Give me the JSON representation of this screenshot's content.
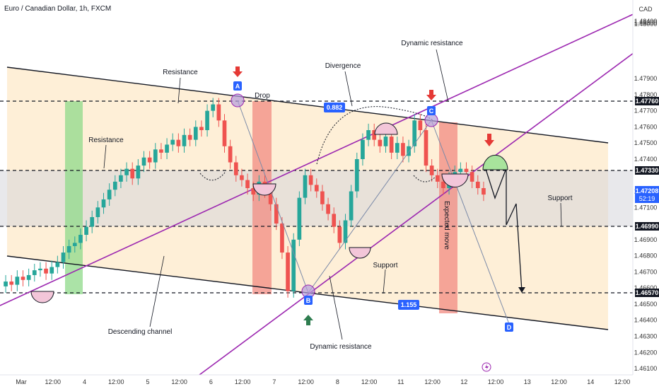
{
  "header": {
    "symbol": "Euro / Canadian Dollar, 1h, FXCM",
    "currency": "CAD"
  },
  "colors": {
    "channel_fill": "#fde9c9",
    "range_fill": "#d5d5da",
    "green_zone": "#8fd98a",
    "red_zone": "#f28b82",
    "purple": "#9c27b0",
    "candle_up": "#26a69a",
    "candle_down": "#ef5350",
    "price_tag_blue": "#2962ff",
    "arrow_red": "#e53935",
    "arrow_green": "#2e7d4f"
  },
  "chart_data": {
    "type": "candlestick",
    "price_axis_ticks": [
      "1.48400",
      "1.48200",
      "1.48000",
      "1.47900",
      "1.47800",
      "1.47700",
      "1.47600",
      "1.47500",
      "1.47400",
      "1.47200",
      "1.47100",
      "1.46900",
      "1.46800",
      "1.46700",
      "1.46600",
      "1.46500",
      "1.46400",
      "1.46300",
      "1.46200",
      "1.46100"
    ],
    "time_axis_labels": [
      "Mar",
      "12:00",
      "4",
      "12:00",
      "5",
      "12:00",
      "6",
      "12:00",
      "7",
      "12:00",
      "8",
      "12:00",
      "11",
      "12:00",
      "12",
      "12:00",
      "13",
      "12:00",
      "14",
      "12:00"
    ],
    "levels": [
      {
        "price": "1.47760"
      },
      {
        "price": "1.47330"
      },
      {
        "price": "1.46990"
      },
      {
        "price": "1.46570"
      }
    ],
    "current_price": "1.47208",
    "countdown": "52:19",
    "close_series": [
      1.4664,
      1.4662,
      1.4667,
      1.4665,
      1.4668,
      1.4671,
      1.4672,
      1.4669,
      1.4673,
      1.4676,
      1.4682,
      1.4686,
      1.4688,
      1.4693,
      1.4698,
      1.4704,
      1.471,
      1.4715,
      1.4721,
      1.4726,
      1.473,
      1.4734,
      1.4728,
      1.4736,
      1.4741,
      1.4738,
      1.4746,
      1.4744,
      1.4749,
      1.4752,
      1.4748,
      1.4755,
      1.4752,
      1.476,
      1.4758,
      1.477,
      1.4774,
      1.4764,
      1.4748,
      1.4738,
      1.473,
      1.4727,
      1.4722,
      1.4718,
      1.4726,
      1.472,
      1.4712,
      1.47,
      1.4682,
      1.4658,
      1.469,
      1.4716,
      1.473,
      1.4724,
      1.472,
      1.4712,
      1.4706,
      1.4698,
      1.4688,
      1.4702,
      1.472,
      1.474,
      1.4752,
      1.4758,
      1.4752,
      1.4748,
      1.4754,
      1.4744,
      1.475,
      1.4742,
      1.4748,
      1.4764,
      1.4758,
      1.4736,
      1.473,
      1.4726,
      1.4722,
      1.4728,
      1.4732,
      1.4734,
      1.4732,
      1.4726,
      1.4722,
      1.4718
    ]
  },
  "annotations": {
    "resistance_top": "Resistance",
    "resistance_left": "Resistance",
    "drop": "Drop",
    "divergence": "Divergence",
    "dynamic_resistance_top": "Dynamic resistance",
    "dynamic_resistance_bottom": "Dynamic resistance",
    "support_mid": "Support",
    "support_right": "Support",
    "descending_channel": "Descending channel",
    "expected_move": "Expected move",
    "fib_0882": "0.882",
    "fib_1155": "1.155",
    "point_a": "A",
    "point_b": "B",
    "point_c": "C",
    "point_d": "D"
  }
}
